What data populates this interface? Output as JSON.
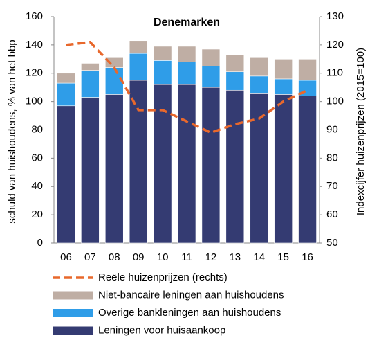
{
  "chart_data": {
    "type": "bar",
    "title": "Denemarken",
    "y_label": "schuld van huishoudens, % van het bbp",
    "y2_label": "Indexcijfer huizenprijzen (2015=100)",
    "categories": [
      "06",
      "07",
      "08",
      "09",
      "10",
      "11",
      "12",
      "13",
      "14",
      "15",
      "16"
    ],
    "series": [
      {
        "name": "Leningen voor huisaankoop",
        "color": "#343b72",
        "values": [
          97,
          103,
          105,
          115,
          112,
          112,
          110,
          108,
          106,
          105,
          104
        ]
      },
      {
        "name": "Overige bankleningen aan huishoudens",
        "color": "#2f9de8",
        "values": [
          16,
          19,
          19,
          19,
          17,
          16,
          15,
          13,
          12,
          11,
          11
        ]
      },
      {
        "name": "Niet-bancaire leningen aan huishoudens",
        "color": "#bfaea4",
        "values": [
          7,
          5,
          7,
          9,
          10,
          11,
          12,
          12,
          13,
          14,
          15
        ]
      },
      {
        "name": "Reële huizenprijzen (rechts)",
        "color": "#e8682c",
        "type": "line",
        "dashed": true,
        "axis": "y2",
        "values": [
          120,
          121,
          112,
          97,
          97,
          93,
          89,
          92,
          94,
          100,
          104
        ]
      }
    ],
    "stacked": true,
    "ylim": [
      0,
      160
    ],
    "yticks": [
      0,
      20,
      40,
      60,
      80,
      100,
      120,
      140,
      160
    ],
    "y2lim": [
      50,
      130
    ],
    "y2ticks": [
      50,
      60,
      70,
      80,
      90,
      100,
      110,
      120,
      130
    ],
    "legend": "bottom"
  }
}
